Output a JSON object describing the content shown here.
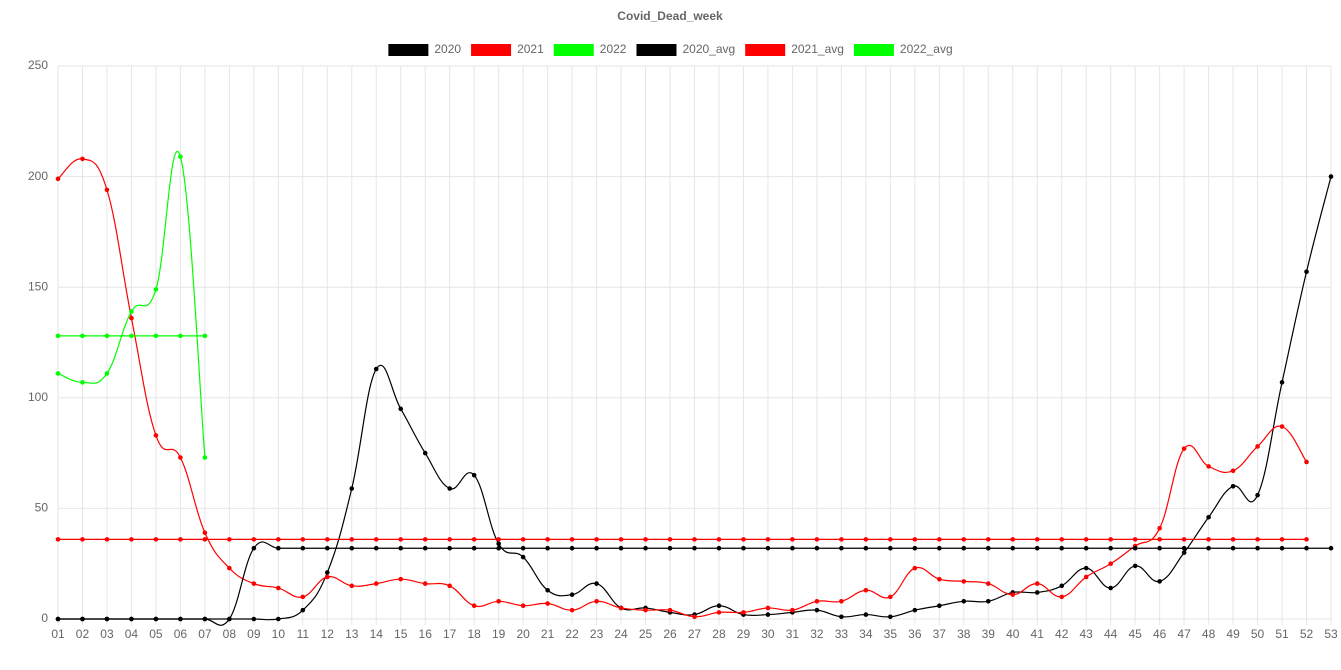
{
  "chart_data": {
    "type": "line",
    "title": "Covid_Dead_week",
    "categories": [
      "01",
      "02",
      "03",
      "04",
      "05",
      "06",
      "07",
      "08",
      "09",
      "10",
      "11",
      "12",
      "13",
      "14",
      "15",
      "16",
      "17",
      "18",
      "19",
      "20",
      "21",
      "22",
      "23",
      "24",
      "25",
      "26",
      "27",
      "28",
      "29",
      "30",
      "31",
      "32",
      "33",
      "34",
      "35",
      "36",
      "37",
      "38",
      "39",
      "40",
      "41",
      "42",
      "43",
      "44",
      "45",
      "46",
      "47",
      "48",
      "49",
      "50",
      "51",
      "52",
      "53"
    ],
    "series": [
      {
        "name": "2020",
        "color": "#000000",
        "values": [
          0,
          0,
          0,
          0,
          0,
          0,
          0,
          0,
          0,
          0,
          4,
          21,
          59,
          113,
          95,
          75,
          59,
          65,
          34,
          28,
          13,
          11,
          16,
          5,
          5,
          3,
          2,
          6,
          2,
          2,
          3,
          4,
          1,
          2,
          1,
          4,
          6,
          8,
          8,
          12,
          12,
          15,
          23,
          14,
          24,
          17,
          30,
          46,
          60,
          56,
          107,
          157,
          200
        ]
      },
      {
        "name": "2021",
        "color": "#ff0000",
        "values": [
          199,
          208,
          194,
          136,
          83,
          73,
          39,
          23,
          16,
          14,
          10,
          19,
          15,
          16,
          18,
          16,
          15,
          6,
          8,
          6,
          7,
          4,
          8,
          5,
          4,
          4,
          1,
          3,
          3,
          5,
          4,
          8,
          8,
          13,
          10,
          23,
          18,
          17,
          16,
          11,
          16,
          10,
          19,
          25,
          33,
          41,
          77,
          69,
          67,
          78,
          87,
          71,
          null
        ]
      },
      {
        "name": "2022",
        "color": "#00ff00",
        "values": [
          111,
          107,
          111,
          139,
          149,
          209,
          73,
          null,
          null,
          null,
          null,
          null,
          null,
          null,
          null,
          null,
          null,
          null,
          null,
          null,
          null,
          null,
          null,
          null,
          null,
          null,
          null,
          null,
          null,
          null,
          null,
          null,
          null,
          null,
          null,
          null,
          null,
          null,
          null,
          null,
          null,
          null,
          null,
          null,
          null,
          null,
          null,
          null,
          null,
          null,
          null,
          null,
          null
        ]
      },
      {
        "name": "2020_avg",
        "color": "#000000",
        "values": [
          0,
          0,
          0,
          0,
          0,
          0,
          0,
          0,
          32,
          32,
          32,
          32,
          32,
          32,
          32,
          32,
          32,
          32,
          32,
          32,
          32,
          32,
          32,
          32,
          32,
          32,
          32,
          32,
          32,
          32,
          32,
          32,
          32,
          32,
          32,
          32,
          32,
          32,
          32,
          32,
          32,
          32,
          32,
          32,
          32,
          32,
          32,
          32,
          32,
          32,
          32,
          32,
          32
        ]
      },
      {
        "name": "2021_avg",
        "color": "#ff0000",
        "values": [
          36,
          36,
          36,
          36,
          36,
          36,
          36,
          36,
          36,
          36,
          36,
          36,
          36,
          36,
          36,
          36,
          36,
          36,
          36,
          36,
          36,
          36,
          36,
          36,
          36,
          36,
          36,
          36,
          36,
          36,
          36,
          36,
          36,
          36,
          36,
          36,
          36,
          36,
          36,
          36,
          36,
          36,
          36,
          36,
          36,
          36,
          36,
          36,
          36,
          36,
          36,
          36,
          null
        ]
      },
      {
        "name": "2022_avg",
        "color": "#00ff00",
        "values": [
          128,
          128,
          128,
          128,
          128,
          128,
          128,
          null,
          null,
          null,
          null,
          null,
          null,
          null,
          null,
          null,
          null,
          null,
          null,
          null,
          null,
          null,
          null,
          null,
          null,
          null,
          null,
          null,
          null,
          null,
          null,
          null,
          null,
          null,
          null,
          null,
          null,
          null,
          null,
          null,
          null,
          null,
          null,
          null,
          null,
          null,
          null,
          null,
          null,
          null,
          null,
          null,
          null
        ]
      }
    ],
    "ylim": [
      0,
      250
    ],
    "yticks": [
      0,
      50,
      100,
      150,
      200,
      250
    ],
    "grid": true,
    "legend": "top"
  }
}
